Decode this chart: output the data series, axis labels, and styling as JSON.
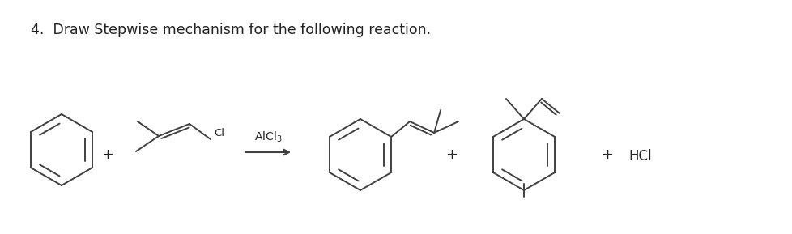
{
  "title": "4.  Draw Stepwise mechanism for the following reaction.",
  "bg_color": "#ffffff",
  "line_color": "#404040",
  "line_width": 1.4,
  "text_color": "#222222",
  "fig_width": 9.79,
  "fig_height": 2.89,
  "dpi": 100,
  "title_fontsize": 12.5,
  "alcl3_fontsize": 10,
  "plus_fontsize": 13,
  "hcl_fontsize": 12,
  "cl_fontsize": 9.5
}
